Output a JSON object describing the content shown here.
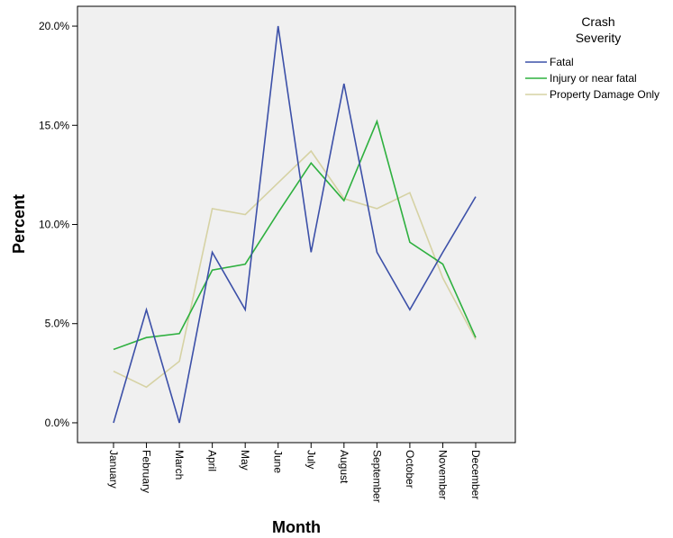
{
  "chart_data": {
    "type": "line",
    "title": "",
    "xlabel": "Month",
    "ylabel": "Percent",
    "categories": [
      "January",
      "February",
      "March",
      "April",
      "May",
      "June",
      "July",
      "August",
      "September",
      "October",
      "November",
      "December"
    ],
    "ylim": [
      -1.0,
      21.0
    ],
    "yticks": [
      0,
      5,
      10,
      15,
      20
    ],
    "ytick_labels": [
      "0.0%",
      "5.0%",
      "10.0%",
      "15.0%",
      "20.0%"
    ],
    "grid": false,
    "legend": {
      "title_lines": [
        "Crash",
        "Severity"
      ],
      "placement": "right"
    },
    "series": [
      {
        "name": "Fatal",
        "color": "#3c50a8",
        "values": [
          0.0,
          5.7,
          0.0,
          8.6,
          5.7,
          20.0,
          8.6,
          17.1,
          8.6,
          5.7,
          8.6,
          11.4
        ]
      },
      {
        "name": "Injury or near fatal",
        "color": "#2eb03f",
        "values": [
          3.7,
          4.3,
          4.5,
          7.7,
          8.0,
          10.6,
          13.1,
          11.2,
          15.2,
          9.1,
          8.0,
          4.3
        ]
      },
      {
        "name": "Property Damage Only",
        "color": "#d6d2a4",
        "values": [
          2.6,
          1.8,
          3.1,
          10.8,
          10.5,
          12.1,
          13.7,
          11.3,
          10.8,
          11.6,
          7.3,
          4.2
        ]
      }
    ],
    "background_color": "#f0f0f0"
  }
}
